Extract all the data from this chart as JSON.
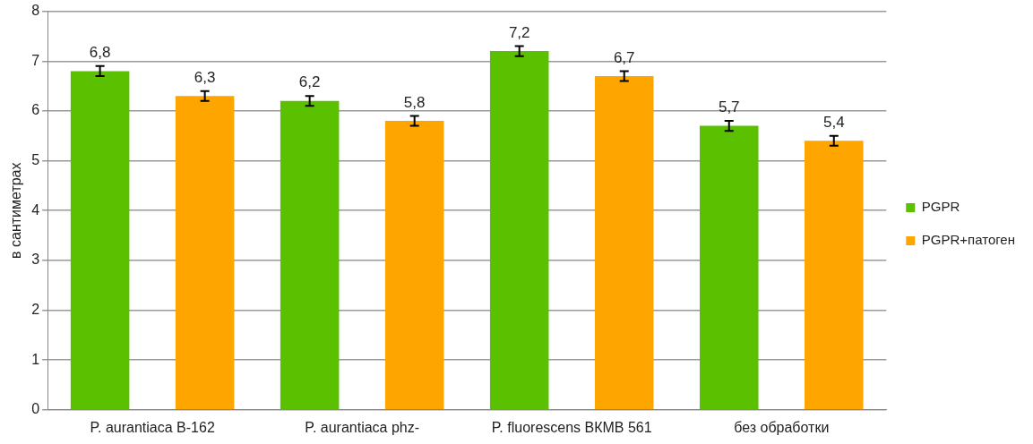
{
  "chart_data": {
    "type": "bar",
    "ylabel": "в сантиметрах",
    "categories": [
      "P. aurantiaca B-162",
      "P. aurantiaca phz-",
      "P. fluorescens ВКМВ 561",
      "без обработки"
    ],
    "series": [
      {
        "name": "PGPR",
        "color": "#5ac000",
        "values": [
          6.8,
          6.2,
          7.2,
          5.7
        ],
        "errors": [
          0.1,
          0.1,
          0.1,
          0.1
        ],
        "value_labels": [
          "6,8",
          "6,2",
          "7,2",
          "5,7"
        ]
      },
      {
        "name": "PGPR+патоген",
        "color": "#ffa500",
        "values": [
          6.3,
          5.8,
          6.7,
          5.4
        ],
        "errors": [
          0.1,
          0.1,
          0.1,
          0.1
        ],
        "value_labels": [
          "6,3",
          "5,8",
          "6,7",
          "5,4"
        ]
      }
    ],
    "ylim": [
      0,
      8
    ],
    "yticks": [
      0,
      1,
      2,
      3,
      4,
      5,
      6,
      7,
      8
    ],
    "grid": "y",
    "legend": "right"
  }
}
